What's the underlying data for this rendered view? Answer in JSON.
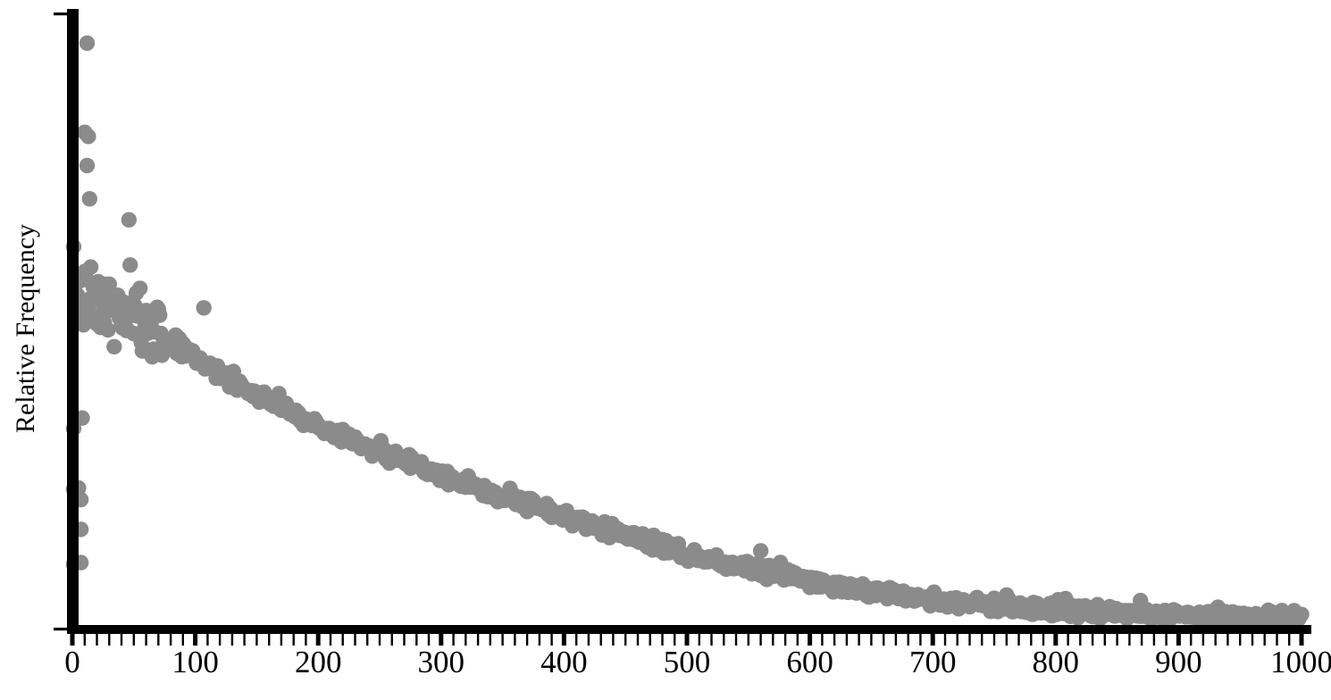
{
  "chart_data": {
    "type": "scatter",
    "title": "",
    "xlabel": "",
    "ylabel": "Relative Frequency",
    "x_axis": {
      "label": "",
      "min": 0,
      "max": 1000,
      "major_ticks": [
        0,
        100,
        200,
        300,
        400,
        500,
        600,
        700,
        800,
        900,
        1000
      ],
      "minor_tick_step": 10
    },
    "y_axis": {
      "label": "Relative Frequency",
      "tick_labels": [],
      "note": "y axis has only two unlabeled ticks (max and zero); values below are expressed as fraction of full axis height"
    },
    "legend": null,
    "grid": false,
    "point_color": "#8b8b8b",
    "axis_color": "#000000",
    "n_points": 1000,
    "trend_anchors": [
      [
        1,
        0.566
      ],
      [
        10,
        0.56
      ],
      [
        20,
        0.551
      ],
      [
        30,
        0.542
      ],
      [
        40,
        0.533
      ],
      [
        50,
        0.524
      ],
      [
        60,
        0.512
      ],
      [
        80,
        0.486
      ],
      [
        100,
        0.459
      ],
      [
        125,
        0.424
      ],
      [
        150,
        0.394
      ],
      [
        200,
        0.342
      ],
      [
        250,
        0.296
      ],
      [
        300,
        0.257
      ],
      [
        350,
        0.22
      ],
      [
        400,
        0.187
      ],
      [
        450,
        0.153
      ],
      [
        500,
        0.122
      ],
      [
        550,
        0.0965
      ],
      [
        600,
        0.075
      ],
      [
        650,
        0.0582
      ],
      [
        700,
        0.0444
      ],
      [
        750,
        0.0337
      ],
      [
        800,
        0.026
      ],
      [
        850,
        0.0214
      ],
      [
        900,
        0.0168
      ],
      [
        950,
        0.0138
      ],
      [
        1000,
        0.0123
      ]
    ],
    "generator": {
      "seed": 7,
      "sigma_scatter": 0.03,
      "sigma_tight": 0.0055,
      "scatter_cutoff": 60,
      "tight_from": 95,
      "bump_chance": 0.04
    },
    "extra_points": [
      [
        12,
        0.998
      ],
      [
        10,
        0.845
      ],
      [
        13,
        0.838
      ],
      [
        12,
        0.788
      ],
      [
        14,
        0.731
      ],
      [
        46,
        0.695
      ],
      [
        107,
        0.544
      ],
      [
        8,
        0.355
      ],
      [
        1,
        0.337
      ],
      [
        5,
        0.235
      ],
      [
        1,
        0.233
      ],
      [
        7,
        0.215
      ],
      [
        7,
        0.164
      ],
      [
        7,
        0.107
      ],
      [
        1,
        0.104
      ]
    ],
    "bump_points": [
      [
        322,
        0.015
      ],
      [
        473,
        0.015
      ],
      [
        560,
        0.035
      ],
      [
        576,
        0.022
      ],
      [
        808,
        0.02
      ]
    ]
  }
}
